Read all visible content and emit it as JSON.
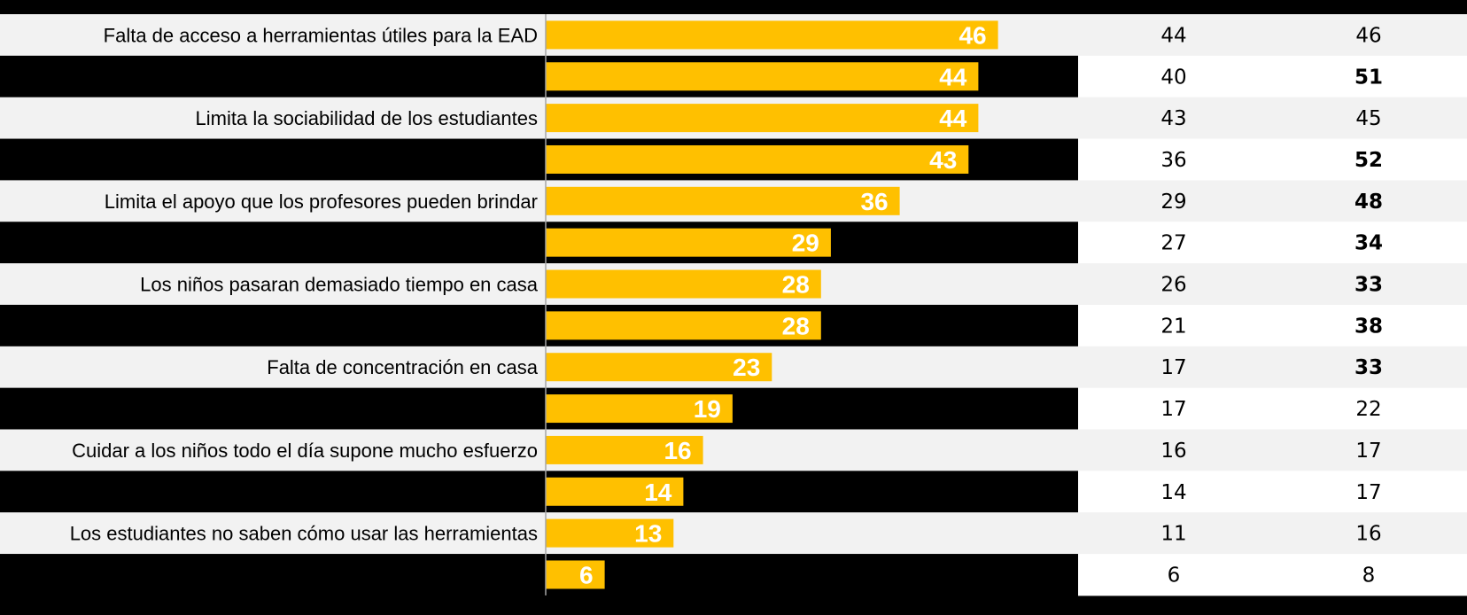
{
  "colors": {
    "background": "#000000",
    "bar": "#FFC000",
    "row_light": "#F2F2F2",
    "row_white": "#FFFFFF",
    "axis": "#A6A6A6",
    "bar_label": "#FFFFFF",
    "text": "#000000"
  },
  "chart_data": {
    "type": "bar",
    "orientation": "horizontal",
    "categories": [
      "Falta de acceso a herramientas útiles para la EAD",
      "",
      "Limita la sociabilidad de los estudiantes",
      "",
      "Limita el apoyo que los profesores pueden brindar",
      "",
      "Los niños pasaran demasiado tiempo en casa",
      "",
      "Falta de concentración en casa",
      "",
      "Cuidar a los niños todo el día supone mucho esfuerzo",
      "",
      "Los estudiantes no saben cómo usar las herramientas",
      ""
    ],
    "values": [
      46,
      44,
      44,
      43,
      36,
      29,
      28,
      28,
      23,
      19,
      16,
      14,
      13,
      6
    ],
    "xlim": [
      0,
      55
    ],
    "grid": false,
    "legend": "none",
    "columns": [
      {
        "values": [
          44,
          40,
          43,
          36,
          29,
          27,
          26,
          21,
          17,
          17,
          16,
          14,
          11,
          6
        ],
        "bold": [
          false,
          false,
          false,
          false,
          false,
          false,
          false,
          false,
          false,
          false,
          false,
          false,
          false,
          false
        ]
      },
      {
        "values": [
          46,
          51,
          45,
          52,
          48,
          34,
          33,
          38,
          33,
          22,
          17,
          17,
          16,
          8
        ],
        "bold": [
          false,
          true,
          false,
          true,
          true,
          true,
          true,
          true,
          true,
          false,
          false,
          false,
          false,
          false
        ]
      }
    ]
  }
}
